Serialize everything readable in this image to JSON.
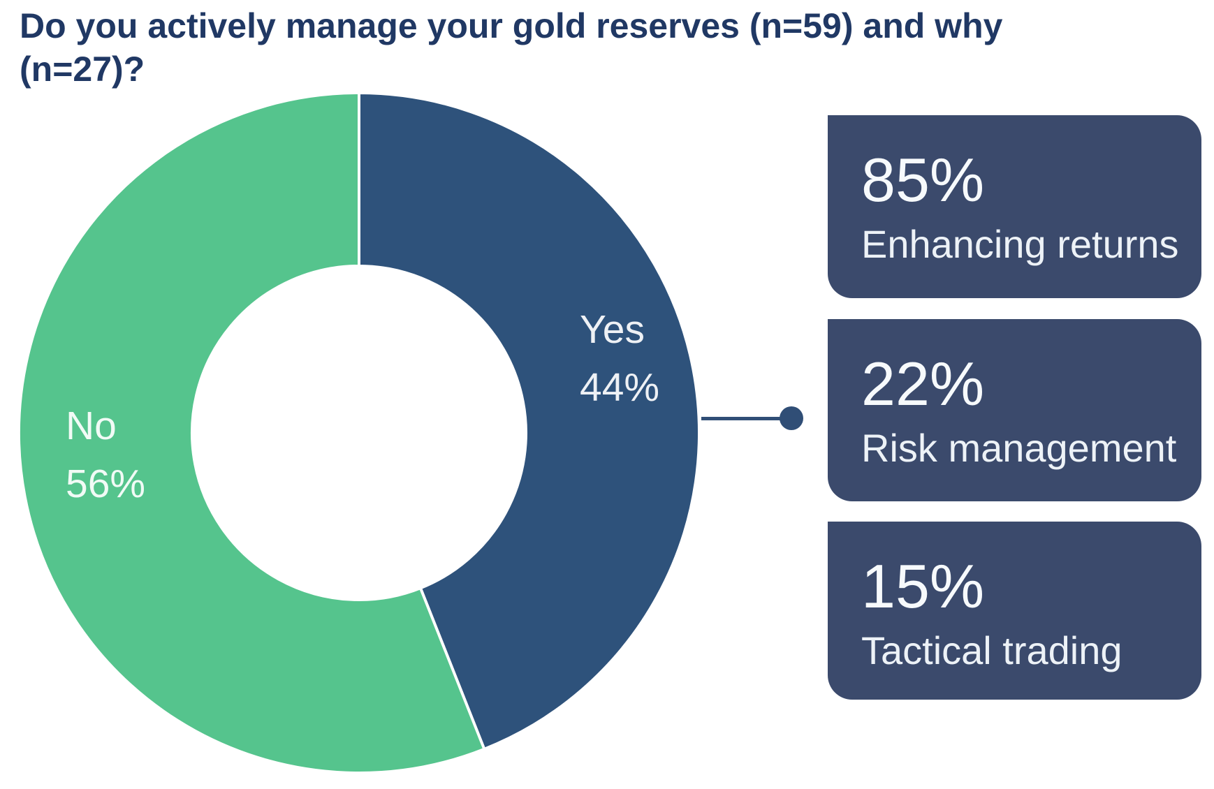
{
  "title": {
    "full": "Do you actively manage your gold reserves (n=59) and why (n=27)?",
    "line1": "Do you actively manage your gold reserves (n=59) and why",
    "line2": "(n=27)?"
  },
  "chart_data": {
    "type": "pie",
    "variant": "donut",
    "title": "Do you actively manage your gold reserves (n=59) and why (n=27)?",
    "sample_sizes": {
      "manage_question_n": 59,
      "why_question_n": 27
    },
    "start_angle_deg": 0,
    "direction": "clockwise",
    "inner_radius_ratio": 0.49,
    "slices": [
      {
        "label": "Yes",
        "value": 44,
        "value_label": "44%",
        "color": "#2E527B"
      },
      {
        "label": "No",
        "value": 56,
        "value_label": "56%",
        "color": "#55C48D"
      }
    ],
    "callouts": [
      {
        "value": "85%",
        "label": "Enhancing returns"
      },
      {
        "value": "22%",
        "label": "Risk management"
      },
      {
        "value": "15%",
        "label": "Tactical trading"
      }
    ],
    "callout_connector": {
      "from_slice": "Yes",
      "to_callout": "Risk management"
    }
  },
  "colors": {
    "title_text": "#203864",
    "slice_yes": "#2E527B",
    "slice_no": "#55C48D",
    "callout_box": "#3B4A6C",
    "connector": "#304E76",
    "slice_label_text": "#FFFFFF",
    "callout_text": "#F2F6F9",
    "background": "#FFFFFF"
  }
}
